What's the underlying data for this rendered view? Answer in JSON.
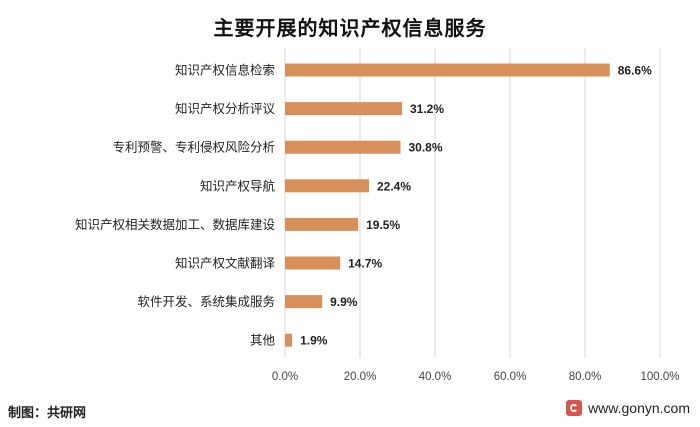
{
  "chart_data": {
    "type": "bar",
    "orientation": "horizontal",
    "title": "主要开展的知识产权信息服务",
    "categories": [
      "知识产权信息检索",
      "知识产权分析评议",
      "专利预警、专利侵权风险分析",
      "知识产权导航",
      "知识产权相关数据加工、数据库建设",
      "知识产权文献翻译",
      "软件开发、系统集成服务",
      "其他"
    ],
    "values": [
      86.6,
      31.2,
      30.8,
      22.4,
      19.5,
      14.7,
      9.9,
      1.9
    ],
    "value_labels": [
      "86.6%",
      "31.2%",
      "30.8%",
      "22.4%",
      "19.5%",
      "14.7%",
      "9.9%",
      "1.9%"
    ],
    "xlim": [
      0,
      100
    ],
    "xticks": [
      0,
      20,
      40,
      60,
      80,
      100
    ],
    "xtick_labels": [
      "0.0%",
      "20.0%",
      "40.0%",
      "60.0%",
      "80.0%",
      "100.0%"
    ],
    "bar_color": "#D8905A",
    "grid": true,
    "xlabel": "",
    "ylabel": ""
  },
  "footer": {
    "source": "制图：共研网",
    "website": "www.gonyn.com"
  }
}
